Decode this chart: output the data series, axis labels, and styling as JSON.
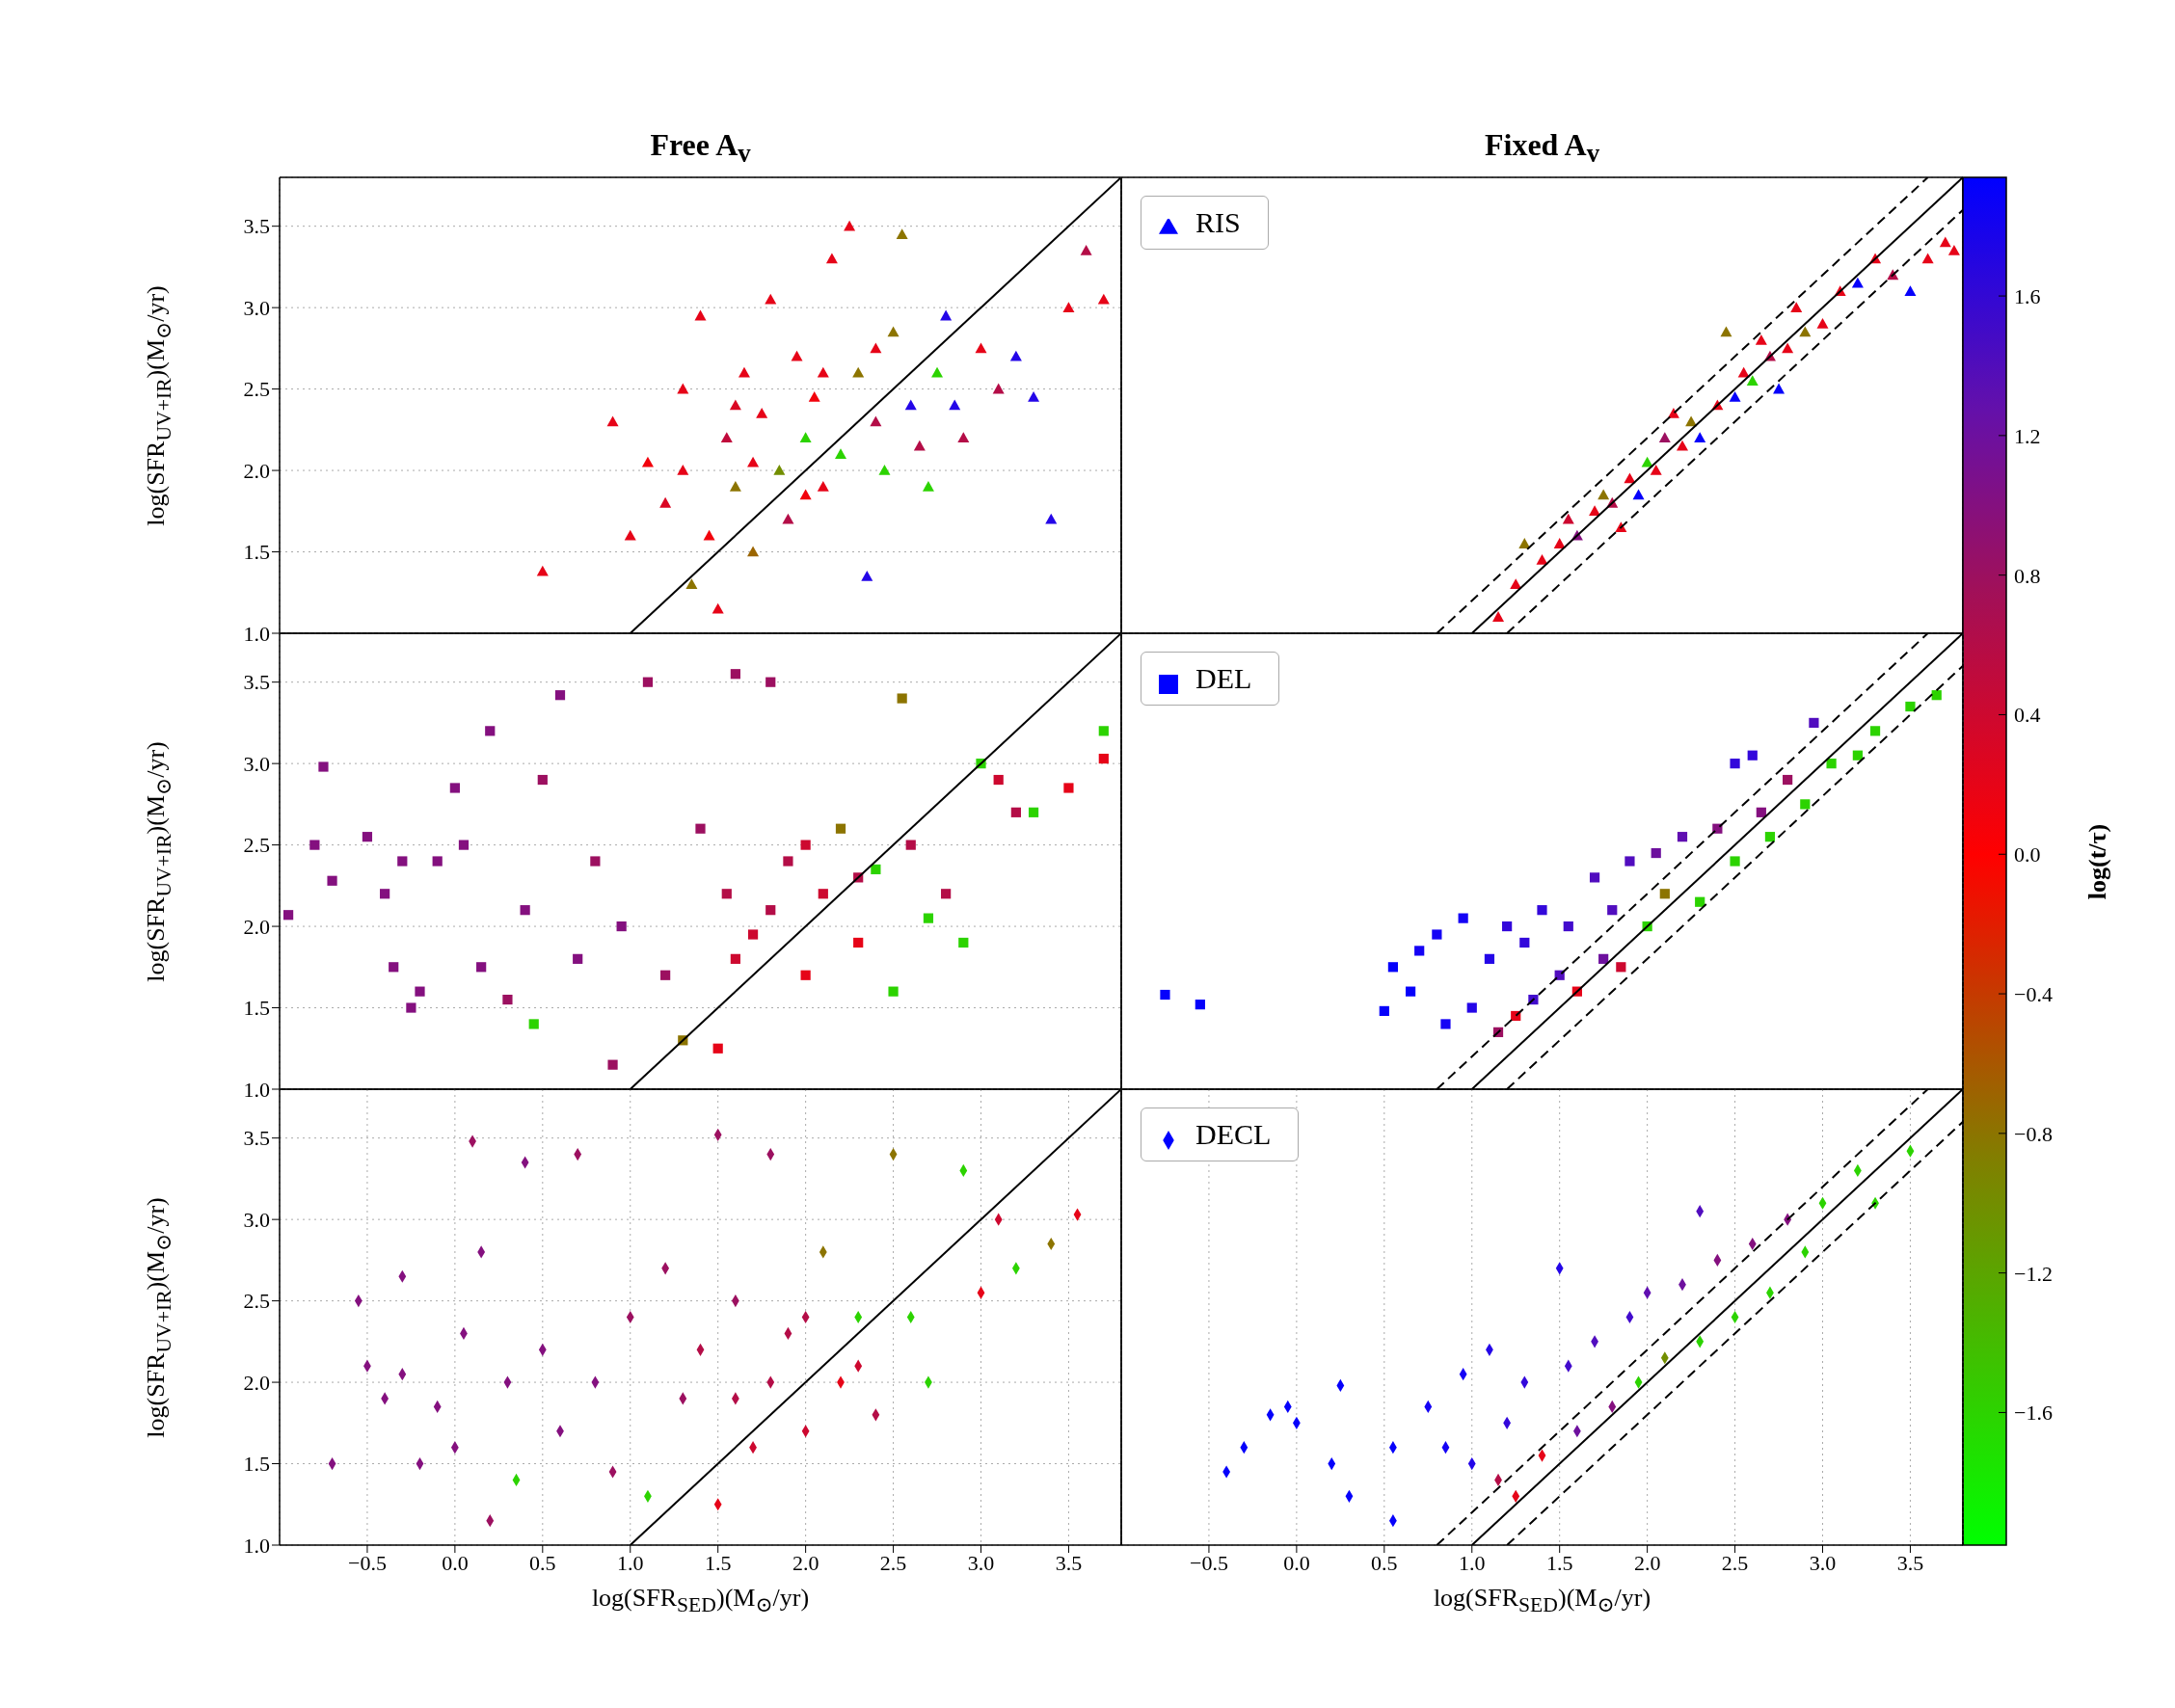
{
  "chart_data": [
    {
      "type": "scatter",
      "title": "Free A$_{v}$",
      "ylabel": "log(SFR$_{UV+IR}$)(M$_{⊙}$/yr)",
      "xlim": [
        -1.0,
        3.8
      ],
      "ylim": [
        1.0,
        3.8
      ],
      "xticks": [
        {
          "value": -0.5,
          "label": null
        },
        {
          "value": 0,
          "label": null
        },
        {
          "value": 0.5,
          "label": null
        },
        {
          "value": 1,
          "label": null
        },
        {
          "value": 1.5,
          "label": null
        },
        {
          "value": 2,
          "label": null
        },
        {
          "value": 2.5,
          "label": null
        },
        {
          "value": 3,
          "label": null
        },
        {
          "value": 3.5,
          "label": null
        }
      ],
      "yticks": [
        {
          "value": 1,
          "label": "1.0"
        },
        {
          "value": 1.5,
          "label": "1.5"
        },
        {
          "value": 2,
          "label": "2.0"
        },
        {
          "value": 2.5,
          "label": "2.5"
        },
        {
          "value": 3,
          "label": "3.0"
        },
        {
          "value": 3.5,
          "label": "3.5"
        }
      ],
      "grid": true,
      "marker": "triangle",
      "tick_labels": "y",
      "series": [
        {
          "type": "scatter",
          "x": [
            0.5,
            0.9,
            1.0,
            1.1,
            1.2,
            1.3,
            1.35,
            1.4,
            1.45,
            1.5,
            1.55,
            1.6,
            1.65,
            1.7,
            1.75,
            1.8,
            1.85,
            1.9,
            1.95,
            2.0,
            2.05,
            2.1,
            2.15,
            2.2,
            2.25,
            2.3,
            2.35,
            2.4,
            2.45,
            2.5,
            2.55,
            2.6,
            2.65,
            2.7,
            2.75,
            2.8,
            2.85,
            2.9,
            3.0,
            3.1,
            3.2,
            3.3,
            3.4,
            3.5,
            3.6,
            3.7,
            1.7,
            2.0,
            1.6,
            2.1,
            1.3,
            2.4
          ],
          "values": [
            1.38,
            2.3,
            1.6,
            2.05,
            1.8,
            2.5,
            1.3,
            2.95,
            1.6,
            1.15,
            2.2,
            1.9,
            2.6,
            1.5,
            2.35,
            3.05,
            2.0,
            1.7,
            2.7,
            2.2,
            2.45,
            1.9,
            3.3,
            2.1,
            3.5,
            2.6,
            1.35,
            2.3,
            2.0,
            2.85,
            3.45,
            2.4,
            2.15,
            1.9,
            2.6,
            2.95,
            2.4,
            2.2,
            2.75,
            2.5,
            2.7,
            2.45,
            1.7,
            3.0,
            3.35,
            3.05,
            2.05,
            1.85,
            2.4,
            2.6,
            2.0,
            2.75
          ],
          "colors": [
            "#e60418",
            "#e60418",
            "#e60418",
            "#f2020c",
            "#da0623",
            "#e60418",
            "#8c7400",
            "#e60418",
            "#f2020c",
            "#e60418",
            "#c00a3b",
            "#8c7400",
            "#e60418",
            "#9b6500",
            "#e60418",
            "#e60418",
            "#728e00",
            "#b40d47",
            "#e60418",
            "#2cd300",
            "#f2020c",
            "#e60418",
            "#e60418",
            "#2cd300",
            "#e60418",
            "#8c7400",
            "#2406e8",
            "#b40d47",
            "#2cd300",
            "#8c7400",
            "#8c7400",
            "#2406e8",
            "#b40d47",
            "#2cd300",
            "#2cd300",
            "#2406e8",
            "#2406e8",
            "#b40d47",
            "#e60418",
            "#b40d47",
            "#2406e8",
            "#2406e8",
            "#2406e8",
            "#e60418",
            "#b40d47",
            "#e60418",
            "#e60418",
            "#f2020c",
            "#da0623",
            "#e60418",
            "#e60418",
            "#e60418"
          ]
        },
        {
          "type": "line",
          "color": "#000000",
          "marker": "none",
          "line_style": "solid",
          "x": [
            1.0,
            3.8
          ],
          "values": [
            1.0,
            3.8
          ]
        }
      ]
    },
    {
      "type": "scatter",
      "title": "Fixed A$_{v}$",
      "xlim": [
        -1.0,
        3.8
      ],
      "ylim": [
        1.0,
        3.8
      ],
      "xticks": [
        {
          "value": -0.5,
          "label": null
        },
        {
          "value": 0,
          "label": null
        },
        {
          "value": 0.5,
          "label": null
        },
        {
          "value": 1,
          "label": null
        },
        {
          "value": 1.5,
          "label": null
        },
        {
          "value": 2,
          "label": null
        },
        {
          "value": 2.5,
          "label": null
        },
        {
          "value": 3,
          "label": null
        },
        {
          "value": 3.5,
          "label": null
        }
      ],
      "yticks": [
        {
          "value": 1,
          "label": null
        },
        {
          "value": 1.5,
          "label": null
        },
        {
          "value": 2,
          "label": null
        },
        {
          "value": 2.5,
          "label": null
        },
        {
          "value": 3,
          "label": null
        },
        {
          "value": 3.5,
          "label": null
        }
      ],
      "grid": true,
      "marker": "triangle",
      "legend": "top left",
      "tick_labels": false,
      "clim": [
        -1.98,
        1.94
      ],
      "clabel": "log(t/τ)",
      "cticks": [
        {
          "value": -1.6,
          "label": "−1.6"
        },
        {
          "value": -1.2,
          "label": "−1.2"
        },
        {
          "value": -0.8,
          "label": "−0.8"
        },
        {
          "value": -0.4,
          "label": "−0.4"
        },
        {
          "value": 0,
          "label": "0.0"
        },
        {
          "value": 0.4,
          "label": "0.4"
        },
        {
          "value": 0.8,
          "label": "0.8"
        },
        {
          "value": 1.2,
          "label": "1.2"
        },
        {
          "value": 1.6,
          "label": "1.6"
        }
      ],
      "series": [
        {
          "type": "scatter",
          "name": "RIS",
          "color": "#0000ff",
          "x": [
            1.15,
            1.25,
            1.3,
            1.4,
            1.5,
            1.55,
            1.6,
            1.7,
            1.75,
            1.8,
            1.9,
            1.95,
            2.0,
            2.05,
            2.1,
            2.2,
            2.25,
            2.3,
            2.4,
            2.5,
            2.55,
            2.6,
            2.65,
            2.7,
            2.8,
            2.85,
            2.9,
            3.0,
            3.1,
            3.2,
            3.3,
            3.4,
            3.5,
            3.6,
            3.7,
            3.75,
            2.45,
            1.85,
            2.15,
            2.75
          ],
          "values": [
            1.1,
            1.3,
            1.55,
            1.45,
            1.55,
            1.7,
            1.6,
            1.75,
            1.85,
            1.8,
            1.95,
            1.85,
            2.05,
            2.0,
            2.2,
            2.15,
            2.3,
            2.2,
            2.4,
            2.45,
            2.6,
            2.55,
            2.8,
            2.7,
            2.75,
            3.0,
            2.85,
            2.9,
            3.1,
            3.15,
            3.3,
            3.2,
            3.1,
            3.3,
            3.4,
            3.35,
            2.85,
            1.65,
            2.35,
            2.5
          ],
          "colors": [
            "#e60418",
            "#e60418",
            "#8c7400",
            "#e60418",
            "#e60418",
            "#cd082f",
            "#84107f",
            "#e60418",
            "#8c7400",
            "#b40d47",
            "#e60418",
            "#0601fb",
            "#2cd300",
            "#e60418",
            "#9c1060",
            "#e60418",
            "#8c7400",
            "#0601fb",
            "#e60418",
            "#0601fb",
            "#e60418",
            "#2cd300",
            "#e60418",
            "#b40d47",
            "#e60418",
            "#e60418",
            "#8c7400",
            "#e60418",
            "#e60418",
            "#0601fb",
            "#e60418",
            "#b40d47",
            "#0601fb",
            "#e60418",
            "#e60418",
            "#e60418",
            "#8c7400",
            "#e60418",
            "#e60418",
            "#0601fb"
          ]
        },
        {
          "type": "line",
          "color": "#000000",
          "marker": "none",
          "line_style": "solid",
          "x": [
            1.0,
            3.8
          ],
          "values": [
            1.0,
            3.8
          ]
        },
        {
          "type": "line",
          "color": "#000000",
          "marker": "none",
          "line_style": "dashed",
          "x": [
            0.8,
            3.6
          ],
          "values": [
            1.0,
            3.8
          ]
        },
        {
          "type": "line",
          "color": "#000000",
          "marker": "none",
          "line_style": "dashed",
          "x": [
            1.2,
            3.8
          ],
          "values": [
            1.0,
            3.6
          ]
        }
      ]
    },
    {
      "type": "scatter",
      "ylabel": "log(SFR$_{UV+IR}$)(M$_{⊙}$/yr)",
      "xlim": [
        -1.0,
        3.8
      ],
      "ylim": [
        1.0,
        3.8
      ],
      "xticks": [
        {
          "value": -0.5,
          "label": null
        },
        {
          "value": 0,
          "label": null
        },
        {
          "value": 0.5,
          "label": null
        },
        {
          "value": 1,
          "label": null
        },
        {
          "value": 1.5,
          "label": null
        },
        {
          "value": 2,
          "label": null
        },
        {
          "value": 2.5,
          "label": null
        },
        {
          "value": 3,
          "label": null
        },
        {
          "value": 3.5,
          "label": null
        }
      ],
      "yticks": [
        {
          "value": 1,
          "label": "1.0"
        },
        {
          "value": 1.5,
          "label": "1.5"
        },
        {
          "value": 2,
          "label": "2.0"
        },
        {
          "value": 2.5,
          "label": "2.5"
        },
        {
          "value": 3,
          "label": "3.0"
        },
        {
          "value": 3.5,
          "label": "3.5"
        }
      ],
      "grid": true,
      "marker": "square",
      "tick_labels": "y",
      "series": [
        {
          "type": "scatter",
          "x": [
            -0.95,
            -0.75,
            -0.8,
            -0.7,
            -0.5,
            -0.4,
            -0.35,
            -0.3,
            -0.25,
            -0.2,
            -0.1,
            0.0,
            0.05,
            0.15,
            0.2,
            0.3,
            0.4,
            0.45,
            0.5,
            0.6,
            0.7,
            0.8,
            0.9,
            0.95,
            1.1,
            1.2,
            1.3,
            1.4,
            1.5,
            1.55,
            1.6,
            1.7,
            1.8,
            1.9,
            2.0,
            2.1,
            2.2,
            2.3,
            2.4,
            2.5,
            2.55,
            2.6,
            2.7,
            2.8,
            2.9,
            3.0,
            3.1,
            3.2,
            3.3,
            3.5,
            3.7,
            3.7,
            1.8,
            2.0,
            1.6,
            2.3
          ],
          "values": [
            2.07,
            2.98,
            2.5,
            2.28,
            2.55,
            2.2,
            1.75,
            2.4,
            1.5,
            1.6,
            2.4,
            2.85,
            2.5,
            1.75,
            3.2,
            1.55,
            2.1,
            1.4,
            2.9,
            3.42,
            1.8,
            2.4,
            1.15,
            2.0,
            3.5,
            1.7,
            1.3,
            2.6,
            1.25,
            2.2,
            3.55,
            1.95,
            3.5,
            2.4,
            1.7,
            2.2,
            2.6,
            1.9,
            2.35,
            1.6,
            3.4,
            2.5,
            2.05,
            2.2,
            1.9,
            3.0,
            2.9,
            2.7,
            2.7,
            2.85,
            3.2,
            3.03,
            2.1,
            2.5,
            1.8,
            2.3
          ],
          "colors": [
            "#84107f",
            "#84107f",
            "#84107f",
            "#84107f",
            "#84107f",
            "#84107f",
            "#84107f",
            "#84107f",
            "#84107f",
            "#84107f",
            "#84107f",
            "#84107f",
            "#84107f",
            "#84107f",
            "#84107f",
            "#9c1060",
            "#84107f",
            "#2cd300",
            "#9c1060",
            "#84107f",
            "#84107f",
            "#9c1060",
            "#9c1060",
            "#84107f",
            "#9c1060",
            "#9c1060",
            "#8c7400",
            "#9c1060",
            "#e60418",
            "#b40d47",
            "#9c1060",
            "#cd082f",
            "#9c1060",
            "#b40d47",
            "#e60418",
            "#cd082f",
            "#8c7400",
            "#e60418",
            "#2cd300",
            "#2cd300",
            "#8c7400",
            "#b40d47",
            "#2cd300",
            "#b40d47",
            "#2cd300",
            "#2cd300",
            "#cd082f",
            "#b40d47",
            "#2cd300",
            "#e60418",
            "#2cd300",
            "#e60418",
            "#b40d47",
            "#cd082f",
            "#cd082f",
            "#b40d47"
          ]
        },
        {
          "type": "line",
          "color": "#000000",
          "marker": "none",
          "line_style": "solid",
          "x": [
            1.0,
            3.8
          ],
          "values": [
            1.0,
            3.8
          ]
        }
      ]
    },
    {
      "type": "scatter",
      "xlim": [
        -1.0,
        3.8
      ],
      "ylim": [
        1.0,
        3.8
      ],
      "xticks": [
        {
          "value": -0.5,
          "label": null
        },
        {
          "value": 0,
          "label": null
        },
        {
          "value": 0.5,
          "label": null
        },
        {
          "value": 1,
          "label": null
        },
        {
          "value": 1.5,
          "label": null
        },
        {
          "value": 2,
          "label": null
        },
        {
          "value": 2.5,
          "label": null
        },
        {
          "value": 3,
          "label": null
        },
        {
          "value": 3.5,
          "label": null
        }
      ],
      "yticks": [
        {
          "value": 1,
          "label": null
        },
        {
          "value": 1.5,
          "label": null
        },
        {
          "value": 2,
          "label": null
        },
        {
          "value": 2.5,
          "label": null
        },
        {
          "value": 3,
          "label": null
        },
        {
          "value": 3.5,
          "label": null
        }
      ],
      "grid": true,
      "marker": "square",
      "legend": "top left",
      "tick_labels": false,
      "series": [
        {
          "type": "scatter",
          "name": "DEL",
          "color": "#0000ff",
          "x": [
            -0.75,
            -0.55,
            0.5,
            0.55,
            0.65,
            0.7,
            0.8,
            0.85,
            0.95,
            1.0,
            1.1,
            1.2,
            1.3,
            1.35,
            1.4,
            1.5,
            1.55,
            1.6,
            1.7,
            1.75,
            1.8,
            1.85,
            1.9,
            2.0,
            2.05,
            2.1,
            2.2,
            2.3,
            2.4,
            2.5,
            2.6,
            2.65,
            2.7,
            2.8,
            2.9,
            2.95,
            3.05,
            3.2,
            3.3,
            3.5,
            3.65,
            2.5,
            1.15,
            1.25
          ],
          "values": [
            1.58,
            1.52,
            1.48,
            1.75,
            1.6,
            1.85,
            1.95,
            1.4,
            2.05,
            1.5,
            1.8,
            2.0,
            1.9,
            1.55,
            2.1,
            1.7,
            2.0,
            1.6,
            2.3,
            1.8,
            2.1,
            1.75,
            2.4,
            2.0,
            2.45,
            2.2,
            2.55,
            2.15,
            2.6,
            2.4,
            3.05,
            2.7,
            2.55,
            2.9,
            2.75,
            3.25,
            3.0,
            3.05,
            3.2,
            3.35,
            3.42,
            3.0,
            1.35,
            1.45
          ],
          "colors": [
            "#0601fb",
            "#0601fb",
            "#0601fb",
            "#0601fb",
            "#0601fb",
            "#1503f5",
            "#1503f5",
            "#1503f5",
            "#1503f5",
            "#2406e8",
            "#2406e8",
            "#3308db",
            "#3308db",
            "#420bcd",
            "#3308db",
            "#510dbf",
            "#420bcd",
            "#e60418",
            "#510dbf",
            "#6d109e",
            "#510dbf",
            "#cd082f",
            "#510dbf",
            "#2cd300",
            "#6d109e",
            "#8c7400",
            "#600fb1",
            "#2cd300",
            "#84107f",
            "#2cd300",
            "#3308db",
            "#84107f",
            "#2cd300",
            "#9c1060",
            "#2cd300",
            "#510dbf",
            "#2cd300",
            "#2cd300",
            "#2cd300",
            "#2cd300",
            "#2cd300",
            "#3308db",
            "#9c1060",
            "#e60418"
          ]
        },
        {
          "type": "line",
          "color": "#000000",
          "marker": "none",
          "line_style": "solid",
          "x": [
            1.0,
            3.8
          ],
          "values": [
            1.0,
            3.8
          ]
        },
        {
          "type": "line",
          "color": "#000000",
          "marker": "none",
          "line_style": "dashed",
          "x": [
            0.8,
            3.6
          ],
          "values": [
            1.0,
            3.8
          ]
        },
        {
          "type": "line",
          "color": "#000000",
          "marker": "none",
          "line_style": "dashed",
          "x": [
            1.2,
            3.8
          ],
          "values": [
            1.0,
            3.6
          ]
        }
      ]
    },
    {
      "type": "scatter",
      "xlabel": "log(SFR$_{SED}$)(M$_{⊙}$/yr)",
      "ylabel": "log(SFR$_{UV+IR}$)(M$_{⊙}$/yr)",
      "xlim": [
        -1.0,
        3.8
      ],
      "ylim": [
        1.0,
        3.8
      ],
      "xticks": [
        {
          "value": -0.5,
          "label": "−0.5"
        },
        {
          "value": 0,
          "label": "0.0"
        },
        {
          "value": 0.5,
          "label": "0.5"
        },
        {
          "value": 1,
          "label": "1.0"
        },
        {
          "value": 1.5,
          "label": "1.5"
        },
        {
          "value": 2,
          "label": "2.0"
        },
        {
          "value": 2.5,
          "label": "2.5"
        },
        {
          "value": 3,
          "label": "3.0"
        },
        {
          "value": 3.5,
          "label": "3.5"
        }
      ],
      "yticks": [
        {
          "value": 1,
          "label": "1.0"
        },
        {
          "value": 1.5,
          "label": "1.5"
        },
        {
          "value": 2,
          "label": "2.0"
        },
        {
          "value": 2.5,
          "label": "2.5"
        },
        {
          "value": 3,
          "label": "3.0"
        },
        {
          "value": 3.5,
          "label": "3.5"
        }
      ],
      "grid": true,
      "marker": "diamond",
      "series": [
        {
          "type": "scatter",
          "x": [
            -0.7,
            -0.55,
            -0.5,
            -0.4,
            -0.3,
            -0.3,
            -0.2,
            -0.1,
            0.0,
            0.05,
            0.1,
            0.15,
            0.2,
            0.3,
            0.35,
            0.4,
            0.5,
            0.6,
            0.7,
            0.8,
            0.9,
            1.0,
            1.1,
            1.2,
            1.3,
            1.4,
            1.5,
            1.5,
            1.6,
            1.7,
            1.8,
            1.9,
            2.0,
            2.1,
            2.2,
            2.3,
            2.4,
            2.5,
            2.6,
            2.7,
            2.9,
            3.0,
            3.1,
            3.2,
            3.4,
            3.55,
            1.8,
            2.0,
            1.6,
            2.3
          ],
          "values": [
            1.5,
            2.5,
            2.1,
            1.9,
            2.65,
            2.05,
            1.5,
            1.85,
            1.6,
            2.3,
            3.48,
            2.8,
            1.15,
            2.0,
            1.4,
            3.35,
            2.2,
            1.7,
            3.4,
            2.0,
            1.45,
            2.4,
            1.3,
            2.7,
            1.9,
            2.2,
            1.25,
            3.52,
            2.5,
            1.6,
            3.4,
            2.3,
            1.7,
            2.8,
            2.0,
            2.4,
            1.8,
            3.4,
            2.4,
            2.0,
            3.3,
            2.55,
            3.0,
            2.7,
            2.85,
            3.03,
            2.0,
            2.4,
            1.9,
            2.1
          ],
          "colors": [
            "#84107f",
            "#84107f",
            "#84107f",
            "#84107f",
            "#84107f",
            "#84107f",
            "#84107f",
            "#84107f",
            "#84107f",
            "#84107f",
            "#9c1060",
            "#84107f",
            "#9c1060",
            "#84107f",
            "#2cd300",
            "#84107f",
            "#84107f",
            "#84107f",
            "#9c1060",
            "#84107f",
            "#9c1060",
            "#9c1060",
            "#2cd300",
            "#9c1060",
            "#9c1060",
            "#b40d47",
            "#e60418",
            "#9c1060",
            "#9c1060",
            "#cd082f",
            "#9c1060",
            "#b40d47",
            "#cd082f",
            "#8c7400",
            "#e60418",
            "#2cd300",
            "#b40d47",
            "#8c7400",
            "#2cd300",
            "#2cd300",
            "#2cd300",
            "#e60418",
            "#cd082f",
            "#2cd300",
            "#8c7400",
            "#e60418",
            "#b40d47",
            "#b40d47",
            "#b40d47",
            "#cd082f"
          ]
        },
        {
          "type": "line",
          "color": "#000000",
          "marker": "none",
          "line_style": "solid",
          "x": [
            1.0,
            3.8
          ],
          "values": [
            1.0,
            3.8
          ]
        }
      ]
    },
    {
      "type": "scatter",
      "xlabel": "log(SFR$_{SED}$)(M$_{⊙}$/yr)",
      "xlim": [
        -1.0,
        3.8
      ],
      "ylim": [
        1.0,
        3.8
      ],
      "xticks": [
        {
          "value": -0.5,
          "label": "−0.5"
        },
        {
          "value": 0,
          "label": "0.0"
        },
        {
          "value": 0.5,
          "label": "0.5"
        },
        {
          "value": 1,
          "label": "1.0"
        },
        {
          "value": 1.5,
          "label": "1.5"
        },
        {
          "value": 2,
          "label": "2.0"
        },
        {
          "value": 2.5,
          "label": "2.5"
        },
        {
          "value": 3,
          "label": "3.0"
        },
        {
          "value": 3.5,
          "label": "3.5"
        }
      ],
      "yticks": [
        {
          "value": 1,
          "label": null
        },
        {
          "value": 1.5,
          "label": null
        },
        {
          "value": 2,
          "label": null
        },
        {
          "value": 2.5,
          "label": null
        },
        {
          "value": 3,
          "label": null
        },
        {
          "value": 3.5,
          "label": null
        }
      ],
      "grid": true,
      "marker": "diamond",
      "legend": "top left",
      "tick_labels": "x",
      "series": [
        {
          "type": "scatter",
          "name": "DECL",
          "color": "#0000ff",
          "x": [
            -0.4,
            -0.3,
            -0.15,
            -0.05,
            0.0,
            0.2,
            0.25,
            0.3,
            0.55,
            0.55,
            0.75,
            0.85,
            0.95,
            1.0,
            1.1,
            1.2,
            1.3,
            1.4,
            1.5,
            1.55,
            1.6,
            1.7,
            1.8,
            1.9,
            1.95,
            2.0,
            2.1,
            2.2,
            2.3,
            2.4,
            2.5,
            2.6,
            2.7,
            2.8,
            2.9,
            3.0,
            3.2,
            3.3,
            3.5,
            2.3,
            1.25,
            1.15
          ],
          "values": [
            1.45,
            1.6,
            1.8,
            1.85,
            1.75,
            1.5,
            1.98,
            1.3,
            1.6,
            1.15,
            1.85,
            1.6,
            2.05,
            1.5,
            2.2,
            1.75,
            2.0,
            1.55,
            2.7,
            2.1,
            1.7,
            2.25,
            1.85,
            2.4,
            2.0,
            2.55,
            2.15,
            2.6,
            2.25,
            2.75,
            2.4,
            2.85,
            2.55,
            3.0,
            2.8,
            3.1,
            3.3,
            3.1,
            3.42,
            3.05,
            1.3,
            1.4
          ],
          "colors": [
            "#0601fb",
            "#0601fb",
            "#0601fb",
            "#0601fb",
            "#0601fb",
            "#0601fb",
            "#0601fb",
            "#0601fb",
            "#0601fb",
            "#0601fb",
            "#1503f5",
            "#1503f5",
            "#1503f5",
            "#2406e8",
            "#2406e8",
            "#3308db",
            "#3308db",
            "#e60418",
            "#2406e8",
            "#420bcd",
            "#6d109e",
            "#510dbf",
            "#84107f",
            "#420bcd",
            "#2cd300",
            "#600fb1",
            "#728e00",
            "#6d109e",
            "#2cd300",
            "#84107f",
            "#2cd300",
            "#84107f",
            "#2cd300",
            "#84107f",
            "#2cd300",
            "#2cd300",
            "#2cd300",
            "#2cd300",
            "#2cd300",
            "#510dbf",
            "#e60418",
            "#b40d47"
          ]
        },
        {
          "type": "line",
          "color": "#000000",
          "marker": "none",
          "line_style": "solid",
          "x": [
            1.0,
            3.8
          ],
          "values": [
            1.0,
            3.8
          ]
        },
        {
          "type": "line",
          "color": "#000000",
          "marker": "none",
          "line_style": "dashed",
          "x": [
            0.8,
            3.6
          ],
          "values": [
            1.0,
            3.8
          ]
        },
        {
          "type": "line",
          "color": "#000000",
          "marker": "none",
          "line_style": "dashed",
          "x": [
            1.2,
            3.8
          ],
          "values": [
            1.0,
            3.6
          ]
        }
      ]
    }
  ]
}
